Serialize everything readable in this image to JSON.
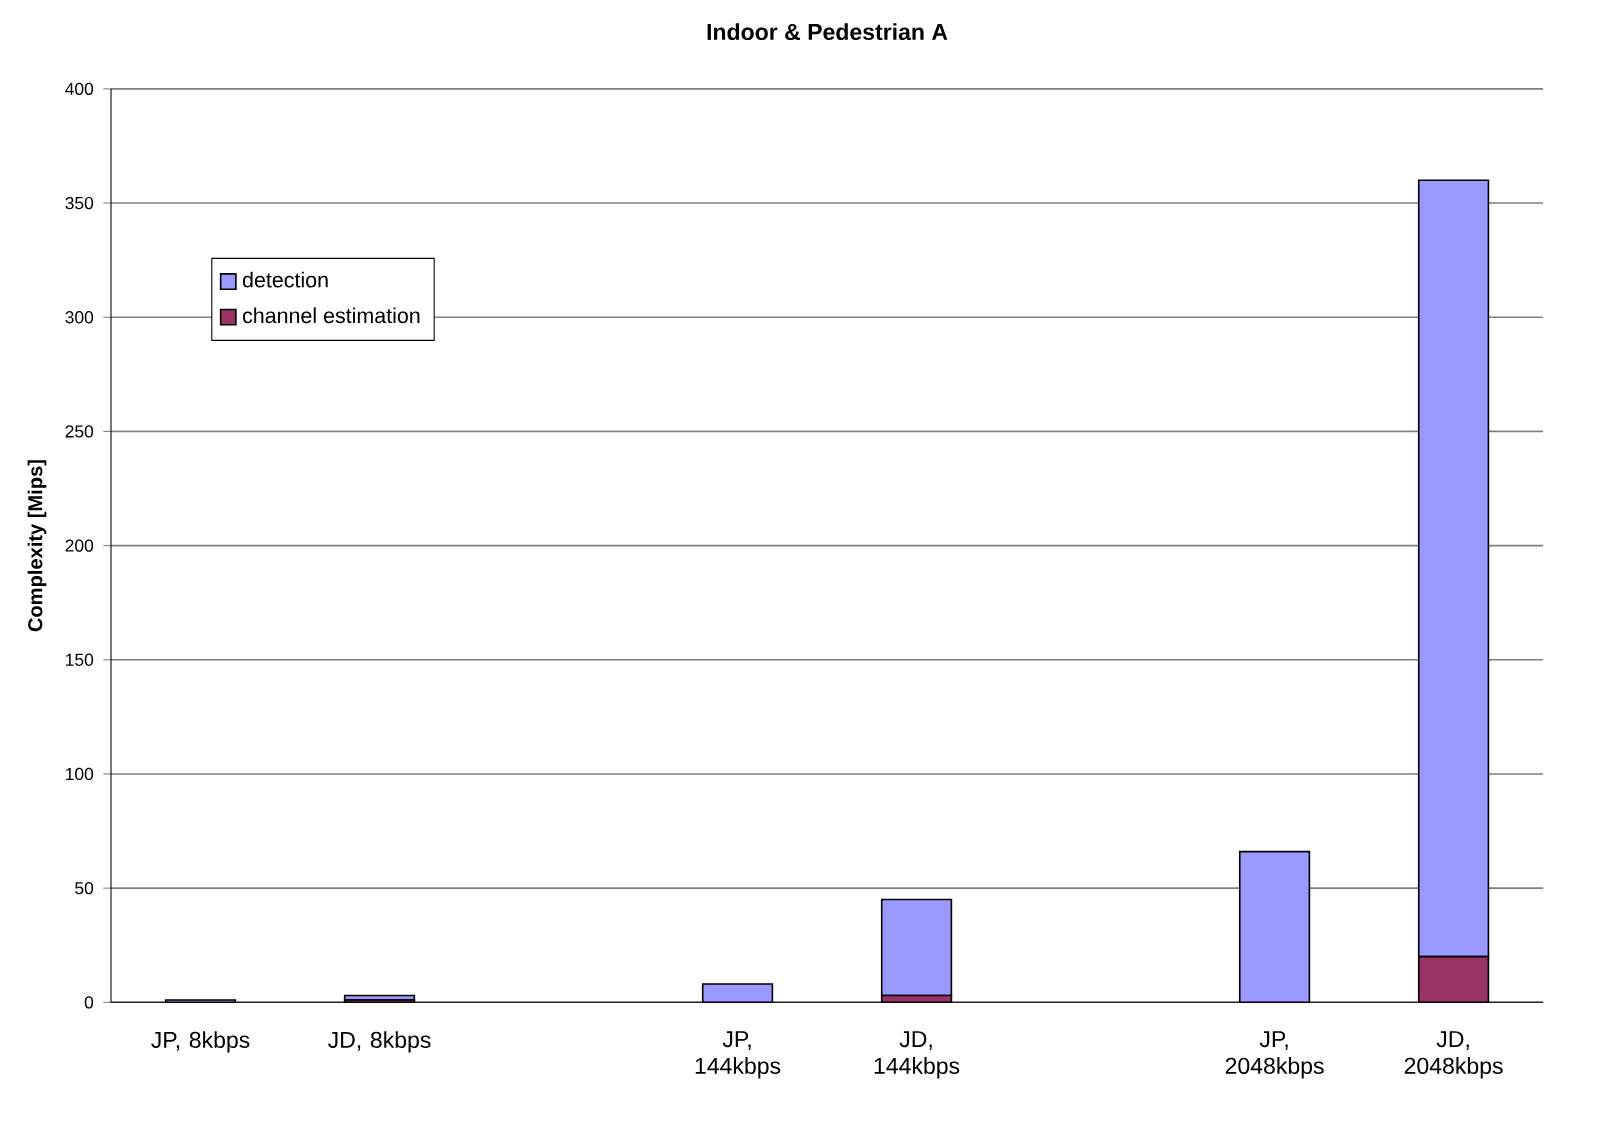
{
  "chart_data": {
    "type": "bar",
    "title": "Indoor & Pedestrian A",
    "ylabel": "Complexity [Mips]",
    "categories": [
      "JP, 8kbps",
      "JD, 8kbps",
      null,
      "JP, 144kbps",
      "JD, 144kbps",
      null,
      "JP, 2048kbps",
      "JD, 2048kbps"
    ],
    "series": [
      {
        "name": "channel estimation",
        "color": "#993366",
        "values": [
          0,
          1,
          null,
          0,
          3,
          null,
          0,
          20
        ]
      },
      {
        "name": "detection",
        "color": "#9999ff",
        "values": [
          1,
          2,
          null,
          8,
          42,
          null,
          66,
          340
        ]
      }
    ],
    "stacked": true,
    "ylim": [
      0,
      400
    ],
    "yticks": [
      0,
      50,
      100,
      150,
      200,
      250,
      300,
      350,
      400
    ],
    "grid": "y",
    "legend": "top left"
  }
}
